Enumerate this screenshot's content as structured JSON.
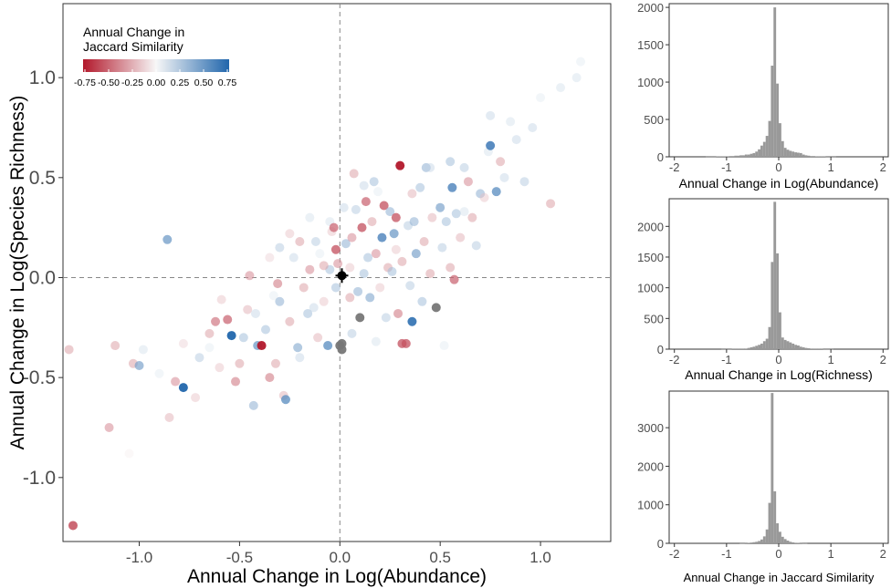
{
  "chart_data": [
    {
      "type": "scatter",
      "title": "",
      "xlabel": "Annual Change in Log(Abundance)",
      "ylabel": "Annual Change in Log(Species Richness)",
      "xlim": [
        -1.38,
        1.35
      ],
      "ylim": [
        -1.32,
        1.37
      ],
      "xticks": [
        -1.0,
        -0.5,
        0.0,
        0.5,
        1.0
      ],
      "xtick_labels": [
        "-1.0",
        "-0.5",
        "0.0",
        "0.5",
        "1.0"
      ],
      "yticks": [
        -1.0,
        -0.5,
        0.0,
        0.5,
        1.0
      ],
      "ytick_labels": [
        "-1.0",
        "-0.5",
        "0.0",
        "0.5",
        "1.0"
      ],
      "grid": false,
      "reference_lines": {
        "x": 0,
        "y": 0,
        "style": "dashed"
      },
      "legend": {
        "title_line1": "Annual Change in",
        "title_line2": "Jaccard Similarity",
        "placement": "top-left",
        "range": [
          -0.75,
          0.75
        ],
        "tick_labels": [
          "-0.75",
          "-0.50",
          "-0.25",
          "0.00",
          "0.25",
          "0.50",
          "0.75"
        ],
        "low_color": "#b2182b",
        "mid_color": "#f7f7f7",
        "high_color": "#2166ac"
      },
      "mean_point": {
        "x": 0.01,
        "y": 0.01,
        "color": "#000000"
      },
      "missing_color": "#777777",
      "points": [
        {
          "x": -1.33,
          "y": -1.24,
          "c": -0.6
        },
        {
          "x": -1.35,
          "y": -0.36,
          "c": -0.3
        },
        {
          "x": -1.15,
          "y": -0.75,
          "c": -0.35
        },
        {
          "x": -1.05,
          "y": -0.88,
          "c": -0.05
        },
        {
          "x": -1.12,
          "y": -0.34,
          "c": -0.3
        },
        {
          "x": -1.03,
          "y": -0.43,
          "c": -0.3
        },
        {
          "x": -1.0,
          "y": -0.44,
          "c": 0.45
        },
        {
          "x": -0.98,
          "y": -0.36,
          "c": 0.15
        },
        {
          "x": -0.86,
          "y": 0.19,
          "c": 0.5
        },
        {
          "x": -0.85,
          "y": -0.7,
          "c": -0.25
        },
        {
          "x": -0.82,
          "y": -0.52,
          "c": -0.35
        },
        {
          "x": -0.78,
          "y": -0.55,
          "c": 0.75
        },
        {
          "x": -0.72,
          "y": -0.6,
          "c": -0.2
        },
        {
          "x": -0.7,
          "y": -0.4,
          "c": 0.25
        },
        {
          "x": -0.65,
          "y": -0.28,
          "c": -0.3
        },
        {
          "x": -0.62,
          "y": -0.22,
          "c": -0.45
        },
        {
          "x": -0.59,
          "y": -0.11,
          "c": -0.2
        },
        {
          "x": -0.56,
          "y": -0.21,
          "c": -0.5
        },
        {
          "x": -0.54,
          "y": -0.29,
          "c": 0.75
        },
        {
          "x": -0.52,
          "y": -0.52,
          "c": -0.4
        },
        {
          "x": -0.5,
          "y": -0.43,
          "c": -0.3
        },
        {
          "x": -0.48,
          "y": -0.3,
          "c": 0.3
        },
        {
          "x": -0.46,
          "y": -0.16,
          "c": -0.25
        },
        {
          "x": -0.45,
          "y": 0.01,
          "c": -0.35
        },
        {
          "x": -0.43,
          "y": -0.64,
          "c": 0.35
        },
        {
          "x": -0.41,
          "y": -0.34,
          "c": 0.5
        },
        {
          "x": -0.39,
          "y": -0.34,
          "c": -0.75
        },
        {
          "x": -0.37,
          "y": -0.26,
          "c": 0.3
        },
        {
          "x": -0.35,
          "y": -0.5,
          "c": -0.4
        },
        {
          "x": -0.33,
          "y": -0.09,
          "c": 0.1
        },
        {
          "x": -0.31,
          "y": -0.03,
          "c": -0.4
        },
        {
          "x": -0.3,
          "y": 0.15,
          "c": 0.25
        },
        {
          "x": -0.28,
          "y": -0.59,
          "c": -0.25
        },
        {
          "x": -0.27,
          "y": -0.61,
          "c": 0.55
        },
        {
          "x": -0.25,
          "y": -0.22,
          "c": -0.3
        },
        {
          "x": -0.23,
          "y": 0.1,
          "c": 0.2
        },
        {
          "x": -0.21,
          "y": -0.35,
          "c": 0.4
        },
        {
          "x": -0.2,
          "y": 0.18,
          "c": -0.3
        },
        {
          "x": -0.18,
          "y": -0.05,
          "c": -0.3
        },
        {
          "x": -0.16,
          "y": -0.18,
          "c": 0.3
        },
        {
          "x": -0.15,
          "y": 0.04,
          "c": -0.35
        },
        {
          "x": -0.13,
          "y": -0.15,
          "c": 0.2
        },
        {
          "x": -0.11,
          "y": -0.3,
          "c": -0.25
        },
        {
          "x": -0.1,
          "y": 0.12,
          "c": 0.1
        },
        {
          "x": -0.08,
          "y": -0.12,
          "c": -0.2
        },
        {
          "x": -0.06,
          "y": -0.34,
          "c": 0.55
        },
        {
          "x": -0.05,
          "y": 0.28,
          "c": 0.15
        },
        {
          "x": -0.04,
          "y": 0.23,
          "c": -0.2
        },
        {
          "x": -0.03,
          "y": 0.25,
          "c": -0.5
        },
        {
          "x": -0.02,
          "y": -0.05,
          "c": 0.3
        },
        {
          "x": -0.02,
          "y": 0.14,
          "c": -0.55
        },
        {
          "x": -0.01,
          "y": 0.07,
          "c": -0.35
        },
        {
          "x": 0.0,
          "y": -0.34,
          "c": null
        },
        {
          "x": 0.01,
          "y": -0.33,
          "c": null
        },
        {
          "x": 0.01,
          "y": -0.36,
          "c": null
        },
        {
          "x": 0.02,
          "y": 0.35,
          "c": 0.2
        },
        {
          "x": 0.03,
          "y": 0.17,
          "c": 0.35
        },
        {
          "x": 0.05,
          "y": 0.05,
          "c": -0.2
        },
        {
          "x": 0.06,
          "y": 0.2,
          "c": -0.35
        },
        {
          "x": 0.07,
          "y": 0.52,
          "c": -0.3
        },
        {
          "x": 0.08,
          "y": 0.34,
          "c": 0.25
        },
        {
          "x": 0.09,
          "y": -0.07,
          "c": 0.35
        },
        {
          "x": 0.1,
          "y": -0.2,
          "c": null
        },
        {
          "x": 0.11,
          "y": 0.25,
          "c": -0.55
        },
        {
          "x": 0.12,
          "y": 0.02,
          "c": 0.3
        },
        {
          "x": 0.13,
          "y": 0.38,
          "c": -0.5
        },
        {
          "x": 0.14,
          "y": 0.1,
          "c": 0.3
        },
        {
          "x": 0.15,
          "y": -0.1,
          "c": 0.4
        },
        {
          "x": 0.16,
          "y": 0.28,
          "c": -0.3
        },
        {
          "x": 0.17,
          "y": 0.48,
          "c": 0.3
        },
        {
          "x": 0.18,
          "y": 0.12,
          "c": -0.35
        },
        {
          "x": 0.19,
          "y": 0.43,
          "c": 0.1
        },
        {
          "x": 0.2,
          "y": -0.05,
          "c": -0.2
        },
        {
          "x": 0.21,
          "y": 0.2,
          "c": 0.6
        },
        {
          "x": 0.22,
          "y": 0.36,
          "c": -0.55
        },
        {
          "x": 0.23,
          "y": -0.2,
          "c": 0.25
        },
        {
          "x": 0.24,
          "y": 0.05,
          "c": -0.3
        },
        {
          "x": 0.25,
          "y": 0.33,
          "c": 0.35
        },
        {
          "x": 0.26,
          "y": 0.03,
          "c": 0.3
        },
        {
          "x": 0.27,
          "y": 0.22,
          "c": 0.5
        },
        {
          "x": 0.28,
          "y": 0.3,
          "c": -0.55
        },
        {
          "x": 0.29,
          "y": -0.18,
          "c": -0.4
        },
        {
          "x": 0.3,
          "y": 0.56,
          "c": -0.75
        },
        {
          "x": 0.31,
          "y": 0.08,
          "c": -0.3
        },
        {
          "x": 0.31,
          "y": -0.33,
          "c": -0.55
        },
        {
          "x": 0.33,
          "y": -0.33,
          "c": -0.55
        },
        {
          "x": 0.34,
          "y": 0.26,
          "c": 0.25
        },
        {
          "x": 0.35,
          "y": -0.04,
          "c": 0.25
        },
        {
          "x": 0.36,
          "y": -0.22,
          "c": 0.7
        },
        {
          "x": 0.37,
          "y": 0.28,
          "c": 0.35
        },
        {
          "x": 0.38,
          "y": 0.12,
          "c": 0.45
        },
        {
          "x": 0.4,
          "y": 0.45,
          "c": 0.3
        },
        {
          "x": 0.41,
          "y": -0.12,
          "c": 0.3
        },
        {
          "x": 0.42,
          "y": 0.18,
          "c": -0.3
        },
        {
          "x": 0.43,
          "y": 0.55,
          "c": 0.35
        },
        {
          "x": 0.45,
          "y": 0.02,
          "c": -0.3
        },
        {
          "x": 0.46,
          "y": 0.3,
          "c": -0.25
        },
        {
          "x": 0.48,
          "y": -0.15,
          "c": null
        },
        {
          "x": 0.5,
          "y": 0.35,
          "c": 0.45
        },
        {
          "x": 0.51,
          "y": 0.15,
          "c": 0.25
        },
        {
          "x": 0.53,
          "y": 0.28,
          "c": 0.3
        },
        {
          "x": 0.55,
          "y": 0.05,
          "c": -0.3
        },
        {
          "x": 0.56,
          "y": 0.45,
          "c": 0.6
        },
        {
          "x": 0.57,
          "y": -0.01,
          "c": -0.5
        },
        {
          "x": 0.58,
          "y": 0.32,
          "c": 0.3
        },
        {
          "x": 0.6,
          "y": 0.2,
          "c": -0.25
        },
        {
          "x": 0.62,
          "y": 0.55,
          "c": 0.25
        },
        {
          "x": 0.64,
          "y": 0.48,
          "c": -0.35
        },
        {
          "x": 0.66,
          "y": 0.3,
          "c": -0.3
        },
        {
          "x": 0.68,
          "y": 0.16,
          "c": 0.25
        },
        {
          "x": 0.7,
          "y": 0.42,
          "c": 0.35
        },
        {
          "x": 0.72,
          "y": 0.4,
          "c": -0.2
        },
        {
          "x": 0.74,
          "y": 0.63,
          "c": 0.15
        },
        {
          "x": 0.75,
          "y": 0.66,
          "c": 0.65
        },
        {
          "x": 0.78,
          "y": 0.43,
          "c": 0.55
        },
        {
          "x": 0.8,
          "y": 0.58,
          "c": -0.3
        },
        {
          "x": 0.82,
          "y": 0.5,
          "c": 0.2
        },
        {
          "x": 0.85,
          "y": 0.78,
          "c": 0.15
        },
        {
          "x": 0.88,
          "y": 0.69,
          "c": 0.2
        },
        {
          "x": 0.92,
          "y": 0.48,
          "c": 0.25
        },
        {
          "x": 0.96,
          "y": 0.75,
          "c": 0.2
        },
        {
          "x": 1.0,
          "y": 0.9,
          "c": 0.1
        },
        {
          "x": 1.05,
          "y": 0.37,
          "c": -0.3
        },
        {
          "x": 1.1,
          "y": 0.95,
          "c": 0.15
        },
        {
          "x": 1.18,
          "y": 1.0,
          "c": 0.15
        },
        {
          "x": 1.2,
          "y": 1.08,
          "c": 0.1
        },
        {
          "x": 0.75,
          "y": 0.81,
          "c": 0.2
        },
        {
          "x": 0.55,
          "y": 0.58,
          "c": 0.3
        },
        {
          "x": 0.45,
          "y": 0.55,
          "c": 0.2
        },
        {
          "x": -0.15,
          "y": 0.3,
          "c": 0.15
        },
        {
          "x": -0.25,
          "y": 0.22,
          "c": -0.2
        },
        {
          "x": -0.35,
          "y": 0.1,
          "c": -0.15
        },
        {
          "x": -0.6,
          "y": -0.45,
          "c": -0.2
        },
        {
          "x": -0.78,
          "y": -0.33,
          "c": -0.15
        },
        {
          "x": -0.9,
          "y": -0.48,
          "c": 0.1
        },
        {
          "x": -0.2,
          "y": -0.4,
          "c": 0.2
        },
        {
          "x": 0.06,
          "y": -0.28,
          "c": 0.25
        },
        {
          "x": 0.18,
          "y": -0.32,
          "c": 0.15
        },
        {
          "x": 0.52,
          "y": -0.34,
          "c": 0.1
        },
        {
          "x": -0.42,
          "y": -0.18,
          "c": 0.2
        },
        {
          "x": -0.12,
          "y": 0.18,
          "c": 0.25
        },
        {
          "x": 0.36,
          "y": 0.42,
          "c": -0.25
        },
        {
          "x": 0.62,
          "y": 0.33,
          "c": 0.15
        },
        {
          "x": -0.05,
          "y": 0.04,
          "c": 0.3
        },
        {
          "x": -0.08,
          "y": 0.06,
          "c": -0.3
        },
        {
          "x": 0.05,
          "y": -0.1,
          "c": -0.3
        },
        {
          "x": -0.3,
          "y": -0.12,
          "c": 0.35
        },
        {
          "x": 0.28,
          "y": 0.14,
          "c": -0.2
        },
        {
          "x": -0.65,
          "y": -0.35,
          "c": 0.1
        },
        {
          "x": -0.32,
          "y": -0.43,
          "c": -0.3
        },
        {
          "x": 0.12,
          "y": 0.46,
          "c": 0.2
        }
      ]
    },
    {
      "type": "bar",
      "title": "",
      "xlabel": "Annual Change in Log(Abundance)",
      "ylabel": "",
      "xlim": [
        -2.1,
        2.1
      ],
      "ylim": [
        0,
        2050
      ],
      "xticks": [
        -2,
        -1,
        0,
        1,
        2
      ],
      "xtick_labels": [
        "-2",
        "-1",
        "0",
        "1",
        "2"
      ],
      "yticks": [
        0,
        500,
        1000,
        1500,
        2000
      ],
      "ytick_labels": [
        "0",
        "500",
        "1000",
        "1500",
        "2000"
      ],
      "bin_start": -2.0,
      "bin_width": 0.05,
      "bar_color": "#999999",
      "values": [
        0,
        0,
        0,
        0,
        0,
        0,
        0,
        0,
        0,
        0,
        0,
        0,
        2,
        2,
        2,
        2,
        5,
        5,
        5,
        5,
        5,
        10,
        10,
        15,
        15,
        20,
        20,
        30,
        30,
        40,
        50,
        70,
        100,
        150,
        200,
        280,
        480,
        1220,
        2000,
        980,
        450,
        210,
        120,
        95,
        80,
        70,
        60,
        55,
        50,
        30,
        20,
        15,
        10,
        10,
        5,
        5,
        5,
        5,
        2,
        2,
        2,
        2,
        0,
        0,
        0,
        0,
        0,
        0,
        0,
        0,
        0,
        0,
        0,
        0,
        0,
        0,
        0,
        0,
        0,
        0
      ]
    },
    {
      "type": "bar",
      "title": "",
      "xlabel": "Annual Change in Log(Richness)",
      "ylabel": "",
      "xlim": [
        -2.1,
        2.1
      ],
      "ylim": [
        0,
        2450
      ],
      "xticks": [
        -2,
        -1,
        0,
        1,
        2
      ],
      "xtick_labels": [
        "-2",
        "-1",
        "0",
        "1",
        "2"
      ],
      "yticks": [
        0,
        500,
        1000,
        1500,
        2000
      ],
      "ytick_labels": [
        "0",
        "500",
        "1000",
        "1500",
        "2000"
      ],
      "bin_start": -2.0,
      "bin_width": 0.05,
      "bar_color": "#999999",
      "values": [
        0,
        0,
        0,
        0,
        0,
        0,
        0,
        0,
        0,
        0,
        0,
        0,
        0,
        0,
        0,
        0,
        0,
        0,
        2,
        2,
        2,
        2,
        5,
        5,
        5,
        5,
        10,
        10,
        20,
        30,
        40,
        55,
        70,
        90,
        130,
        170,
        360,
        1420,
        2400,
        1560,
        600,
        190,
        150,
        130,
        110,
        90,
        70,
        60,
        40,
        30,
        20,
        15,
        10,
        5,
        5,
        5,
        5,
        2,
        2,
        2,
        2,
        0,
        0,
        0,
        0,
        0,
        0,
        0,
        0,
        0,
        0,
        0,
        0,
        0,
        0,
        0,
        0,
        0,
        0,
        0
      ]
    },
    {
      "type": "bar",
      "title": "",
      "xlabel": "Annual Change in Jaccard Similarity",
      "ylabel": "",
      "xlim": [
        -2.1,
        2.1
      ],
      "ylim": [
        0,
        3950
      ],
      "xticks": [
        -2,
        -1,
        0,
        1,
        2
      ],
      "xtick_labels": [
        "-2",
        "-1",
        "0",
        "1",
        "2"
      ],
      "yticks": [
        0,
        1000,
        2000,
        3000
      ],
      "ytick_labels": [
        "0",
        "1000",
        "2000",
        "3000"
      ],
      "bin_start": -2.0,
      "bin_width": 0.05,
      "bar_color": "#999999",
      "values": [
        0,
        0,
        0,
        0,
        0,
        0,
        0,
        0,
        0,
        0,
        0,
        0,
        0,
        0,
        0,
        0,
        0,
        0,
        0,
        0,
        0,
        0,
        0,
        0,
        0,
        2,
        2,
        5,
        10,
        20,
        30,
        40,
        60,
        100,
        180,
        360,
        1050,
        3900,
        1350,
        520,
        300,
        170,
        110,
        70,
        40,
        25,
        15,
        10,
        5,
        2,
        2,
        0,
        0,
        0,
        0,
        0,
        0,
        0,
        0,
        0,
        0,
        0,
        0,
        0,
        0,
        0,
        0,
        0,
        0,
        0,
        0,
        0,
        0,
        0,
        0,
        0,
        0,
        0,
        0,
        0
      ]
    }
  ]
}
